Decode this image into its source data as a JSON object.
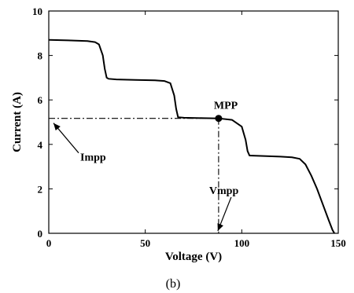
{
  "chart_data": {
    "type": "line",
    "caption": "(b)",
    "xlabel": "Voltage (V)",
    "ylabel": "Current (A)",
    "xlim": [
      0,
      150
    ],
    "ylim": [
      0,
      10
    ],
    "xticks": [
      0,
      50,
      100,
      150
    ],
    "yticks": [
      0,
      2,
      4,
      6,
      8,
      10
    ],
    "grid": false,
    "series": [
      {
        "x": [
          0,
          10,
          20,
          24,
          26,
          28,
          29,
          30,
          31,
          35,
          45,
          55,
          60,
          63,
          65,
          66,
          67,
          70,
          80,
          88,
          95,
          100,
          102,
          103,
          104,
          110,
          120,
          126,
          130,
          133,
          136,
          139,
          142,
          145,
          147,
          148
        ],
        "y": [
          8.7,
          8.68,
          8.65,
          8.6,
          8.5,
          8.0,
          7.4,
          7.0,
          6.95,
          6.92,
          6.9,
          6.88,
          6.85,
          6.75,
          6.2,
          5.6,
          5.22,
          5.2,
          5.18,
          5.17,
          5.1,
          4.8,
          4.2,
          3.7,
          3.5,
          3.48,
          3.45,
          3.42,
          3.35,
          3.1,
          2.6,
          2.0,
          1.3,
          0.6,
          0.15,
          0
        ]
      }
    ],
    "mpp": {
      "x": 88,
      "y": 5.17,
      "label": "MPP"
    },
    "annotations": [
      {
        "name": "impp",
        "label": "Impp",
        "points_to_axis": "y",
        "value": 5.17
      },
      {
        "name": "vmpp",
        "label": "Vmpp",
        "points_to_axis": "x",
        "value": 88
      }
    ],
    "color": "#000000"
  }
}
